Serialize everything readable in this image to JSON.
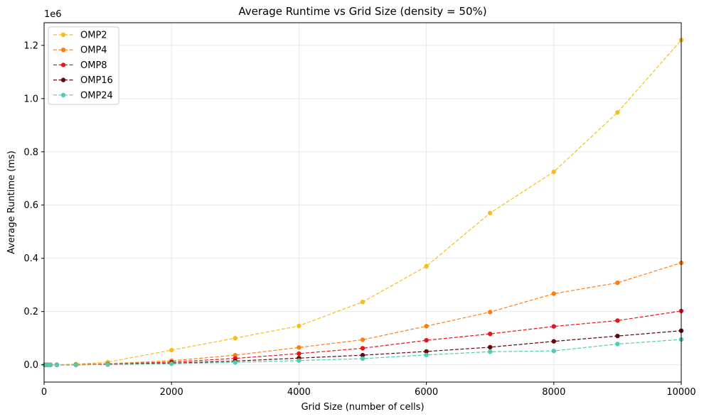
{
  "chart_data": {
    "type": "line",
    "title": "Average Runtime vs Grid Size (density = 50%)",
    "xlabel": "Grid Size (number of cells)",
    "ylabel": "Average Runtime (ms)",
    "y_offset_label": "1e6",
    "xlim": [
      0,
      10000
    ],
    "ylim": [
      -0.065,
      1.285
    ],
    "xticks": [
      0,
      2000,
      4000,
      6000,
      8000,
      10000
    ],
    "yticks": [
      0.0,
      0.2,
      0.4,
      0.6,
      0.8,
      1.0,
      1.2
    ],
    "grid": true,
    "legend_position": "upper-left",
    "x": [
      10,
      50,
      100,
      200,
      500,
      1000,
      2000,
      3000,
      4000,
      5000,
      6000,
      7000,
      8000,
      9000,
      10000
    ],
    "series": [
      {
        "name": "OMP2",
        "color": "#f5bf1b",
        "values": [
          0.0,
          0.0,
          0.0,
          0.0,
          0.002,
          0.01,
          0.055,
          0.1,
          0.146,
          0.236,
          0.37,
          0.57,
          0.725,
          0.948,
          1.22
        ]
      },
      {
        "name": "OMP4",
        "color": "#ff7f0e",
        "values": [
          0.0,
          0.0,
          0.0,
          0.0,
          0.001,
          0.004,
          0.015,
          0.036,
          0.065,
          0.094,
          0.145,
          0.198,
          0.267,
          0.308,
          0.383
        ]
      },
      {
        "name": "OMP8",
        "color": "#e8141c",
        "values": [
          0.0,
          0.0,
          0.0,
          0.0,
          0.0,
          0.002,
          0.01,
          0.024,
          0.042,
          0.062,
          0.092,
          0.116,
          0.144,
          0.166,
          0.202
        ]
      },
      {
        "name": "OMP16",
        "color": "#5c0a0a",
        "values": [
          0.0,
          0.0,
          0.0,
          0.0,
          0.0,
          0.001,
          0.006,
          0.014,
          0.025,
          0.036,
          0.05,
          0.066,
          0.088,
          0.108,
          0.128
        ]
      },
      {
        "name": "OMP24",
        "color": "#4ecdb1",
        "values": [
          0.0,
          0.0,
          0.0,
          0.0,
          0.0,
          0.001,
          0.004,
          0.009,
          0.016,
          0.023,
          0.037,
          0.049,
          0.052,
          0.078,
          0.095
        ]
      }
    ]
  }
}
